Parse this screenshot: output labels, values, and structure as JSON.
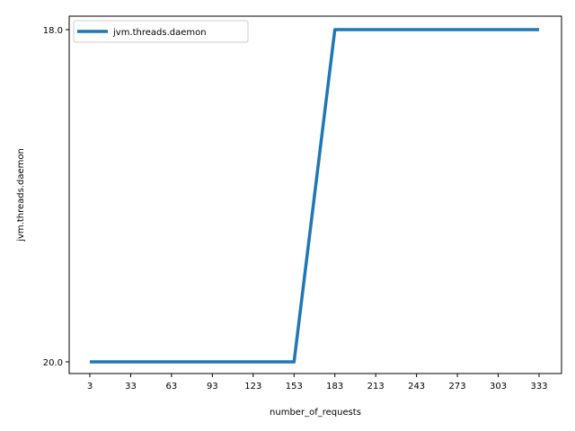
{
  "chart_data": {
    "type": "line",
    "title": "",
    "xlabel": "number_of_requests",
    "ylabel": "jvm.threads.daemon",
    "x": [
      3,
      33,
      63,
      93,
      123,
      153,
      183,
      213,
      243,
      273,
      303,
      333
    ],
    "xticks": [
      "3",
      "33",
      "63",
      "93",
      "123",
      "153",
      "183",
      "213",
      "243",
      "273",
      "303",
      "333"
    ],
    "yticks": [
      "20.0",
      "18.0"
    ],
    "series": [
      {
        "name": "jvm.threads.daemon",
        "values": [
          "20.0",
          "20.0",
          "20.0",
          "20.0",
          "20.0",
          "20.0",
          "18.0",
          "18.0",
          "18.0",
          "18.0",
          "18.0",
          "18.0"
        ],
        "color": "#1f77b4"
      }
    ],
    "y_axis_note": "categorical",
    "legend": "top-left",
    "grid": false
  }
}
